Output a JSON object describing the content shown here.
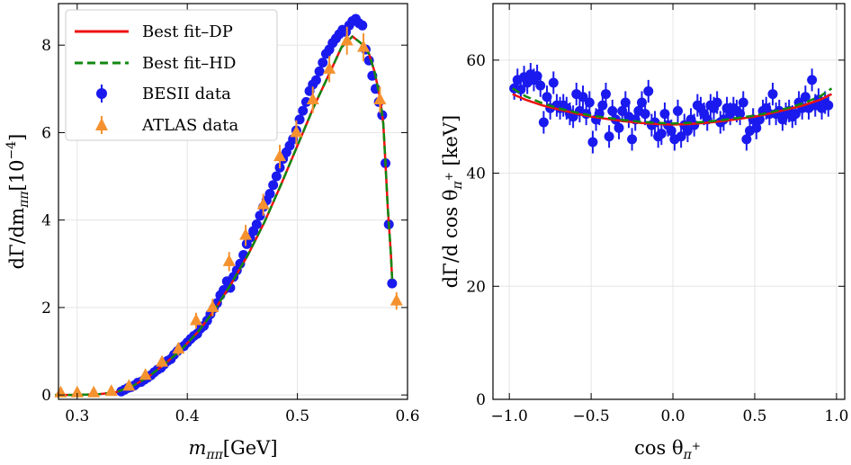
{
  "colors": {
    "dp": "#ee1111",
    "hd": "#118811",
    "besii": "#1a1aee",
    "atlas": "#f5922f",
    "grid": "#e5e5e5"
  },
  "chart_data": [
    {
      "type": "scatter",
      "title": "",
      "xlabel_parts": {
        "m": "m",
        "sub": "ππ",
        "unit": "[GeV]"
      },
      "ylabel_parts": {
        "a": "dΓ/dm",
        "sub": "ππ",
        "b": "[10",
        "exp": "−4",
        "c": "]"
      },
      "xlim": [
        0.283,
        0.6
      ],
      "ylim": [
        -0.1,
        8.95
      ],
      "xticks": [
        0.3,
        0.4,
        0.5,
        0.6
      ],
      "xtick_labels": [
        "0.3",
        "0.4",
        "0.5",
        "0.6"
      ],
      "yticks": [
        0,
        2,
        4,
        6,
        8
      ],
      "ytick_labels": [
        "0",
        "2",
        "4",
        "6",
        "8"
      ],
      "grid": true,
      "legend_position": "top-left",
      "legend": [
        "Best fit–DP",
        "Best fit–HD",
        "BESII data",
        "ATLAS data"
      ],
      "series": [
        {
          "name": "Best fit–DP",
          "kind": "line",
          "x": [
            0.28,
            0.3,
            0.32,
            0.335,
            0.35,
            0.365,
            0.38,
            0.395,
            0.41,
            0.425,
            0.44,
            0.455,
            0.47,
            0.485,
            0.5,
            0.515,
            0.53,
            0.54,
            0.55,
            0.56,
            0.565,
            0.57,
            0.575,
            0.578,
            0.58,
            0.582,
            0.585,
            0.586
          ],
          "y": [
            0.0,
            0.0,
            0.02,
            0.06,
            0.2,
            0.42,
            0.72,
            1.05,
            1.45,
            1.95,
            2.55,
            3.2,
            3.95,
            4.8,
            5.7,
            6.6,
            7.4,
            7.95,
            8.2,
            8.0,
            7.8,
            7.4,
            6.8,
            6.2,
            5.3,
            4.3,
            3.2,
            2.65
          ]
        },
        {
          "name": "Best fit–HD",
          "kind": "line",
          "x": [
            0.28,
            0.3,
            0.32,
            0.335,
            0.35,
            0.365,
            0.38,
            0.395,
            0.41,
            0.425,
            0.44,
            0.455,
            0.47,
            0.485,
            0.5,
            0.515,
            0.53,
            0.54,
            0.55,
            0.56,
            0.565,
            0.57,
            0.575,
            0.578,
            0.58,
            0.582,
            0.585,
            0.586
          ],
          "y": [
            0.0,
            0.0,
            0.02,
            0.06,
            0.2,
            0.42,
            0.72,
            1.05,
            1.45,
            1.95,
            2.55,
            3.2,
            3.95,
            4.8,
            5.7,
            6.6,
            7.4,
            7.95,
            8.2,
            8.0,
            7.8,
            7.4,
            6.8,
            6.2,
            5.3,
            4.3,
            3.2,
            2.65
          ]
        },
        {
          "name": "BESII data",
          "kind": "points",
          "x": [
            0.34,
            0.343,
            0.346,
            0.349,
            0.352,
            0.355,
            0.358,
            0.361,
            0.364,
            0.367,
            0.37,
            0.373,
            0.376,
            0.379,
            0.382,
            0.385,
            0.388,
            0.391,
            0.394,
            0.397,
            0.4,
            0.403,
            0.406,
            0.409,
            0.412,
            0.415,
            0.418,
            0.421,
            0.424,
            0.427,
            0.43,
            0.433,
            0.436,
            0.439,
            0.442,
            0.445,
            0.448,
            0.451,
            0.454,
            0.457,
            0.46,
            0.463,
            0.466,
            0.469,
            0.472,
            0.475,
            0.478,
            0.481,
            0.484,
            0.487,
            0.49,
            0.493,
            0.496,
            0.499,
            0.502,
            0.505,
            0.508,
            0.511,
            0.514,
            0.517,
            0.52,
            0.523,
            0.526,
            0.529,
            0.532,
            0.535,
            0.538,
            0.541,
            0.544,
            0.547,
            0.55,
            0.553,
            0.556,
            0.559,
            0.562,
            0.565,
            0.568,
            0.571,
            0.574,
            0.577,
            0.58,
            0.583,
            0.586
          ],
          "y": [
            0.08,
            0.12,
            0.16,
            0.18,
            0.22,
            0.28,
            0.3,
            0.35,
            0.4,
            0.45,
            0.52,
            0.58,
            0.62,
            0.7,
            0.78,
            0.82,
            0.92,
            1.0,
            1.08,
            1.12,
            1.2,
            1.28,
            1.35,
            1.4,
            1.52,
            1.58,
            1.7,
            1.85,
            1.98,
            2.1,
            2.28,
            2.4,
            2.6,
            2.45,
            2.7,
            2.85,
            3.0,
            3.2,
            3.45,
            3.6,
            3.75,
            3.9,
            4.1,
            4.3,
            4.45,
            4.6,
            4.8,
            5.0,
            5.2,
            5.4,
            5.55,
            5.7,
            5.85,
            6.05,
            6.3,
            6.5,
            6.7,
            6.95,
            7.1,
            7.2,
            7.4,
            7.6,
            7.8,
            7.9,
            8.05,
            8.15,
            8.25,
            8.35,
            8.3,
            8.45,
            8.55,
            8.6,
            8.5,
            8.45,
            7.9,
            7.65,
            7.3,
            7.0,
            6.7,
            6.4,
            5.3,
            3.9,
            2.55
          ]
        },
        {
          "name": "ATLAS data",
          "kind": "triangles",
          "x": [
            0.285,
            0.3,
            0.315,
            0.331,
            0.347,
            0.362,
            0.377,
            0.392,
            0.408,
            0.423,
            0.438,
            0.453,
            0.469,
            0.484,
            0.499,
            0.514,
            0.529,
            0.545,
            0.56,
            0.575,
            0.59
          ],
          "y": [
            0.05,
            0.05,
            0.05,
            0.08,
            0.2,
            0.45,
            0.75,
            1.05,
            1.7,
            2.0,
            3.05,
            3.65,
            4.35,
            5.45,
            6.0,
            6.75,
            7.45,
            8.1,
            7.95,
            6.75,
            2.15
          ],
          "yerr": [
            0.05,
            0.05,
            0.05,
            0.06,
            0.08,
            0.1,
            0.12,
            0.15,
            0.18,
            0.2,
            0.22,
            0.24,
            0.25,
            0.27,
            0.28,
            0.3,
            0.3,
            0.32,
            0.32,
            0.3,
            0.2
          ]
        }
      ]
    },
    {
      "type": "scatter",
      "title": "",
      "xlabel_parts": {
        "a": "cos θ",
        "sub": "π",
        "sup": "+"
      },
      "ylabel_parts": {
        "a": "dΓ/d cos θ",
        "sub": "π",
        "sup": "+",
        "b": " [keV]"
      },
      "xlim": [
        -1.1,
        1.05
      ],
      "ylim": [
        0,
        70
      ],
      "xticks": [
        -1.0,
        -0.5,
        0.0,
        0.5,
        1.0
      ],
      "xtick_labels": [
        "−1.0",
        "−0.5",
        "0.0",
        "0.5",
        "1.0"
      ],
      "yticks": [
        0,
        20,
        40,
        60
      ],
      "ytick_labels": [
        "0",
        "20",
        "40",
        "60"
      ],
      "grid": true,
      "series": [
        {
          "name": "Best fit–DP",
          "kind": "line",
          "x": [
            -0.98,
            -0.9,
            -0.8,
            -0.7,
            -0.6,
            -0.5,
            -0.4,
            -0.3,
            -0.2,
            -0.1,
            0.0,
            0.1,
            0.2,
            0.3,
            0.4,
            0.5,
            0.6,
            0.7,
            0.8,
            0.9,
            0.97
          ],
          "y": [
            54.0,
            53.0,
            52.0,
            51.3,
            50.6,
            50.0,
            49.6,
            49.2,
            48.9,
            48.7,
            48.6,
            48.7,
            48.9,
            49.2,
            49.6,
            50.0,
            50.6,
            51.3,
            52.0,
            53.0,
            54.0
          ]
        },
        {
          "name": "Best fit–HD",
          "kind": "line",
          "x": [
            -0.98,
            -0.9,
            -0.8,
            -0.7,
            -0.6,
            -0.5,
            -0.4,
            -0.3,
            -0.2,
            -0.1,
            0.0,
            0.1,
            0.2,
            0.3,
            0.4,
            0.5,
            0.6,
            0.7,
            0.8,
            0.9,
            0.97
          ],
          "y": [
            55.0,
            53.6,
            52.4,
            51.5,
            50.8,
            50.2,
            49.8,
            49.4,
            49.1,
            48.9,
            48.8,
            48.9,
            49.1,
            49.4,
            49.8,
            50.2,
            50.8,
            51.5,
            52.4,
            53.6,
            55.0
          ]
        },
        {
          "name": "BESII data",
          "kind": "points",
          "x": [
            -0.97,
            -0.95,
            -0.93,
            -0.91,
            -0.89,
            -0.87,
            -0.85,
            -0.83,
            -0.81,
            -0.79,
            -0.77,
            -0.75,
            -0.73,
            -0.71,
            -0.69,
            -0.67,
            -0.65,
            -0.63,
            -0.61,
            -0.59,
            -0.57,
            -0.55,
            -0.53,
            -0.51,
            -0.49,
            -0.47,
            -0.45,
            -0.43,
            -0.41,
            -0.39,
            -0.37,
            -0.35,
            -0.33,
            -0.31,
            -0.29,
            -0.27,
            -0.25,
            -0.23,
            -0.21,
            -0.19,
            -0.17,
            -0.15,
            -0.13,
            -0.11,
            -0.09,
            -0.07,
            -0.05,
            -0.03,
            -0.01,
            0.01,
            0.03,
            0.05,
            0.07,
            0.09,
            0.11,
            0.13,
            0.15,
            0.17,
            0.19,
            0.21,
            0.23,
            0.25,
            0.27,
            0.29,
            0.31,
            0.33,
            0.35,
            0.37,
            0.39,
            0.41,
            0.43,
            0.45,
            0.47,
            0.49,
            0.51,
            0.53,
            0.55,
            0.57,
            0.59,
            0.61,
            0.63,
            0.65,
            0.67,
            0.69,
            0.71,
            0.73,
            0.75,
            0.77,
            0.79,
            0.81,
            0.83,
            0.85,
            0.87,
            0.89,
            0.91,
            0.93,
            0.95
          ],
          "y": [
            55.0,
            56.5,
            54.8,
            57.0,
            56.0,
            57.5,
            56.5,
            57.2,
            55.5,
            49.0,
            53.5,
            51.5,
            56.0,
            52.0,
            51.5,
            52.0,
            51.5,
            50.5,
            50.0,
            54.0,
            51.0,
            53.5,
            50.5,
            52.5,
            45.5,
            49.5,
            50.5,
            52.0,
            54.0,
            46.5,
            51.0,
            49.5,
            48.0,
            51.0,
            52.5,
            50.0,
            46.0,
            49.5,
            51.0,
            52.5,
            50.5,
            54.5,
            48.5,
            49.0,
            46.5,
            47.0,
            50.5,
            48.5,
            47.5,
            46.0,
            51.0,
            46.5,
            48.5,
            47.5,
            49.5,
            48.5,
            52.0,
            51.5,
            50.5,
            49.5,
            52.0,
            51.5,
            52.5,
            49.0,
            49.5,
            51.5,
            50.5,
            51.5,
            51.0,
            50.5,
            52.5,
            46.0,
            47.5,
            49.5,
            48.0,
            49.5,
            51.0,
            51.5,
            50.5,
            54.0,
            50.5,
            51.0,
            49.5,
            50.5,
            51.0,
            50.0,
            50.5,
            52.5,
            51.5,
            53.5,
            51.5,
            56.5,
            52.0,
            53.0,
            51.5,
            52.5,
            52.0
          ],
          "yerr": 2.0
        }
      ]
    }
  ]
}
